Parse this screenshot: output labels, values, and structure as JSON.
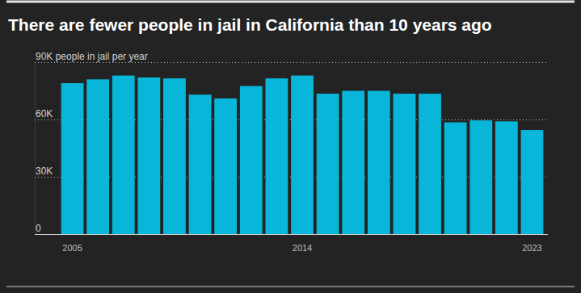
{
  "chart_data": {
    "type": "bar",
    "title": "There are fewer people in jail in California than 10 years ago",
    "categories": [
      "2005",
      null,
      null,
      null,
      null,
      null,
      null,
      null,
      null,
      "2014",
      null,
      null,
      null,
      null,
      null,
      null,
      null,
      null,
      "2023"
    ],
    "values": [
      79000,
      81000,
      83000,
      82000,
      81500,
      73000,
      71000,
      77500,
      81500,
      83000,
      73500,
      75000,
      75000,
      73500,
      73500,
      58500,
      59500,
      59000,
      54500
    ],
    "color": "#07b6d8",
    "ylim": [
      0,
      90000
    ],
    "yticks": [
      0,
      {
        "value": 30000,
        "label": "30K"
      },
      {
        "value": 60000,
        "label": "60K"
      },
      {
        "value": 90000,
        "label": "90K people in jail per year"
      }
    ],
    "grid": true
  }
}
